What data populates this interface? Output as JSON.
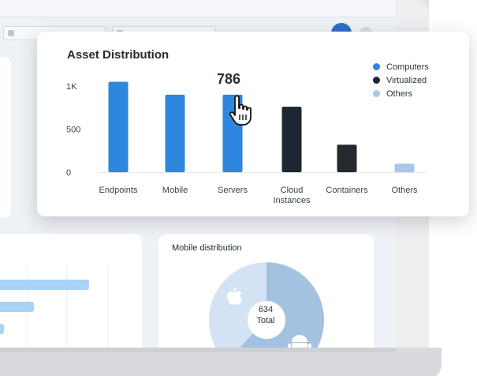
{
  "asset_card": {
    "title": "Asset Distribution",
    "tooltip_value": "786",
    "legend": [
      {
        "label": "Computers",
        "color": "#2e86de"
      },
      {
        "label": "Virtualized",
        "color": "#1f2633"
      },
      {
        "label": "Others",
        "color": "#a8c8ea"
      }
    ]
  },
  "chart_data": {
    "type": "bar",
    "title": "Asset Distribution",
    "categories": [
      "Endpoints",
      "Mobile",
      "Servers",
      "Cloud\nInstances",
      "Containers",
      "Others"
    ],
    "values": [
      1050,
      900,
      900,
      760,
      320,
      100
    ],
    "colors": [
      "#2e86de",
      "#2e86de",
      "#2e86de",
      "#1f2633",
      "#262a30",
      "#a8c8ea"
    ],
    "y_ticks": [
      "0",
      "500",
      "1K"
    ],
    "ylim": [
      0,
      1000
    ],
    "grid": false,
    "legend_position": "top-right"
  },
  "mobile_card": {
    "title": "Mobile distribution",
    "center_value": "634",
    "center_label": "Total",
    "icons": [
      "apple-icon",
      "android-icon"
    ]
  }
}
